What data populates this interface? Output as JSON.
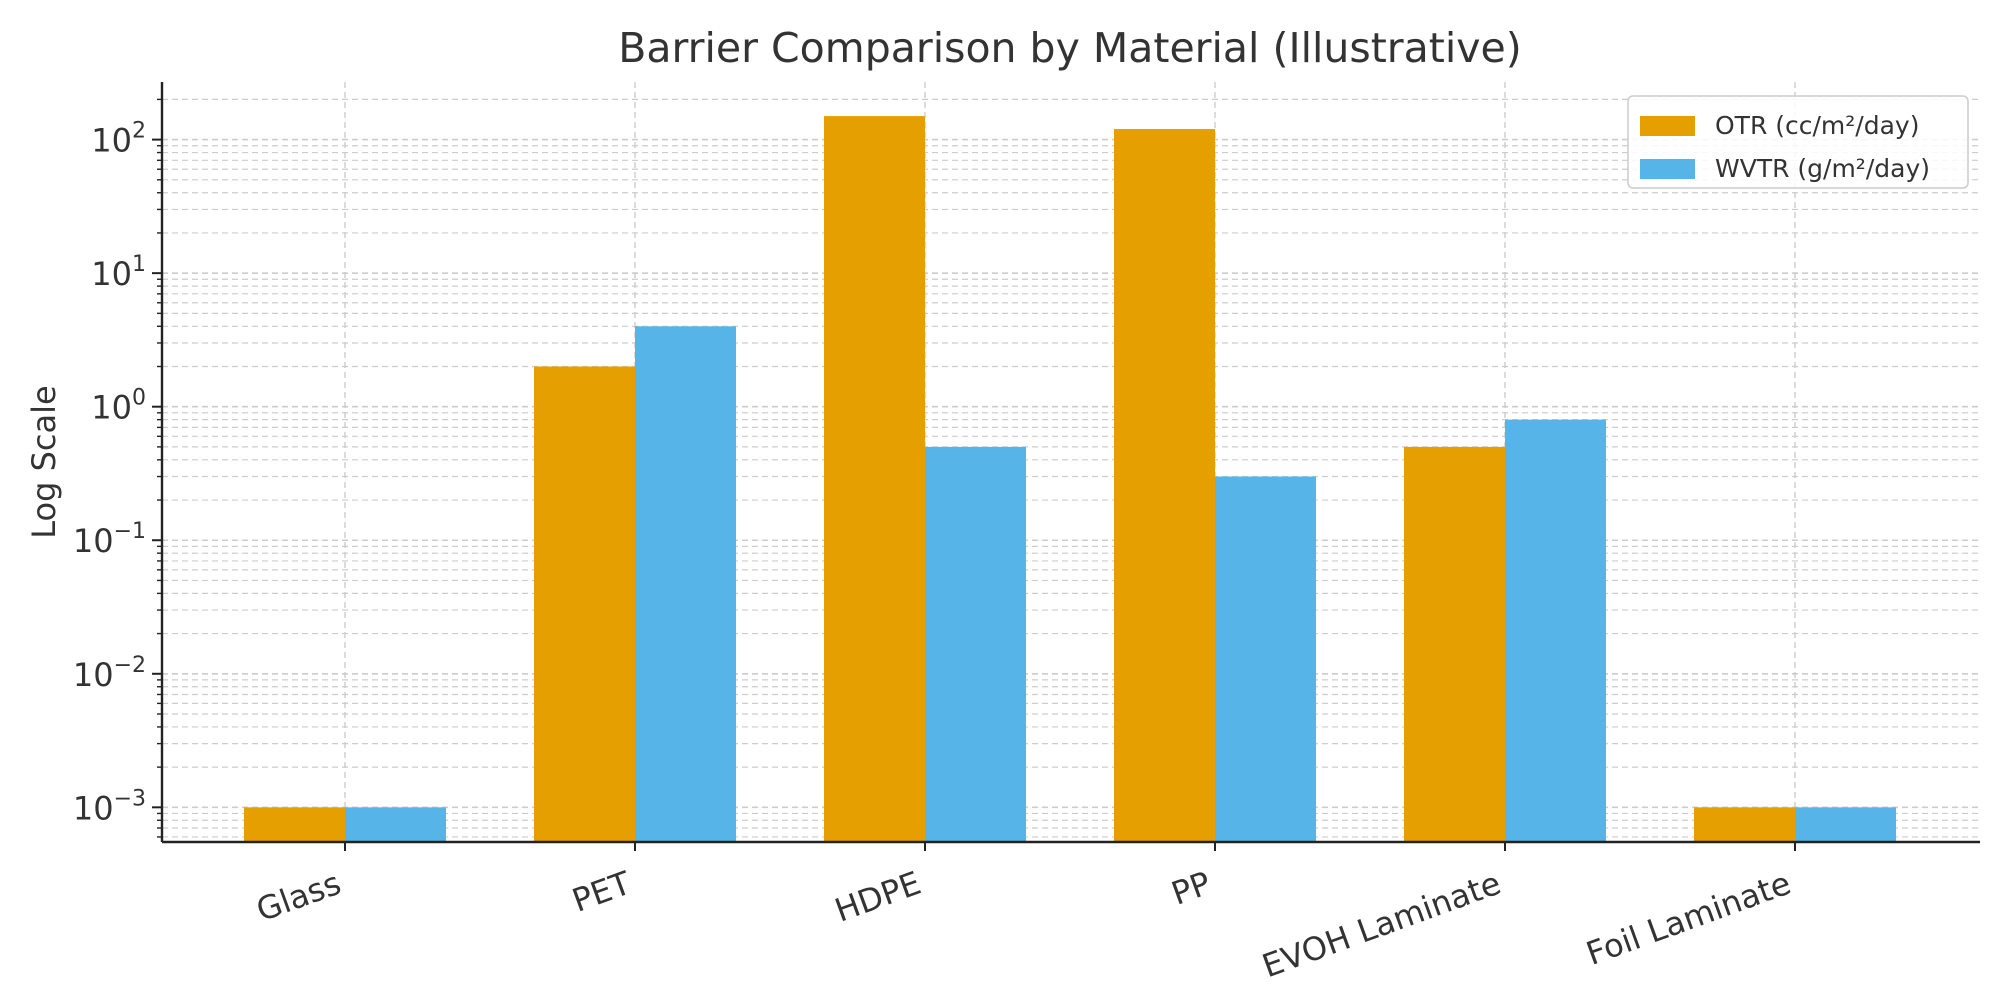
{
  "chart_data": {
    "type": "bar",
    "title": "Barrier Comparison by Material (Illustrative)",
    "xlabel": "",
    "ylabel": "Log Scale",
    "yscale": "log",
    "ylim": [
      0.00055,
      270
    ],
    "grid": true,
    "legend_position": "top-right",
    "categories": [
      "Glass",
      "PET",
      "HDPE",
      "PP",
      "EVOH Laminate",
      "Foil Laminate"
    ],
    "series": [
      {
        "name": "OTR (cc/m²/day)",
        "color": "#E69F00",
        "values": [
          0.001,
          2,
          150,
          120,
          0.5,
          0.001
        ]
      },
      {
        "name": "WVTR (g/m²/day)",
        "color": "#56B4E9",
        "values": [
          0.001,
          4,
          0.5,
          0.3,
          0.8,
          0.001
        ]
      }
    ],
    "yticks": [
      {
        "base": "10",
        "exp": "−3",
        "value": 0.001
      },
      {
        "base": "10",
        "exp": "−2",
        "value": 0.01
      },
      {
        "base": "10",
        "exp": "−1",
        "value": 0.1
      },
      {
        "base": "10",
        "exp": "0",
        "value": 1
      },
      {
        "base": "10",
        "exp": "1",
        "value": 10
      },
      {
        "base": "10",
        "exp": "2",
        "value": 100
      }
    ]
  }
}
